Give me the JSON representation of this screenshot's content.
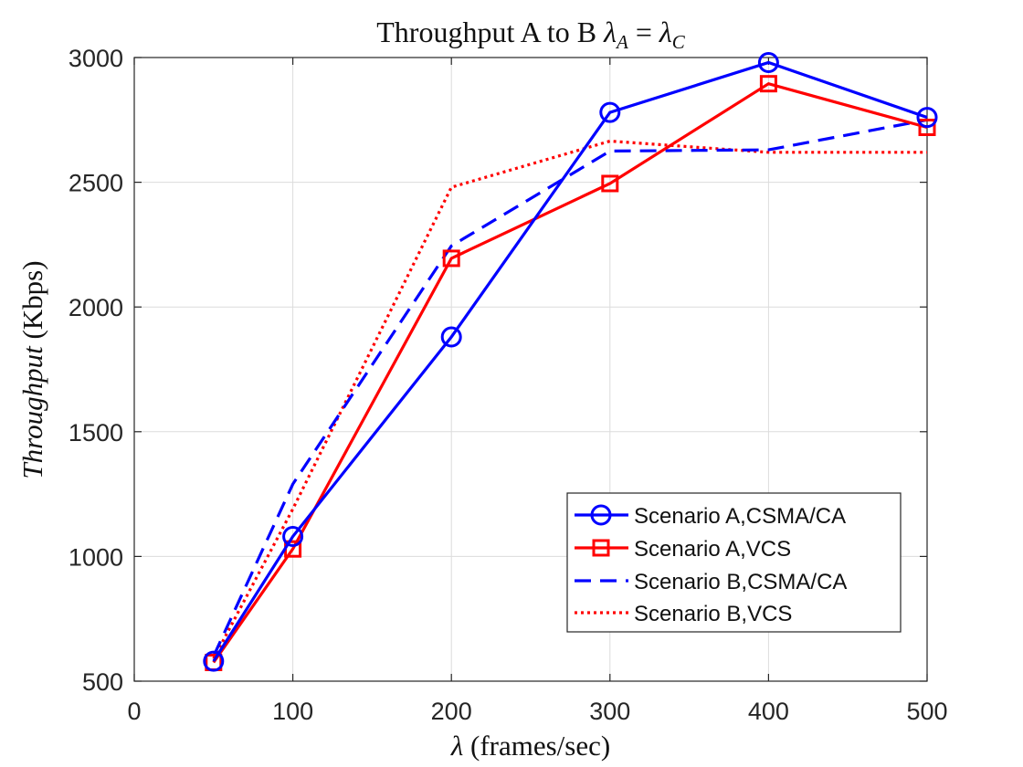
{
  "chart_data": {
    "type": "line",
    "title": {
      "main": "Throughput A to B ",
      "lambda": "λ",
      "sub_a": "A",
      "eq": " = ",
      "lambda2": "λ",
      "sub_c": "C"
    },
    "xlabel": {
      "symbol": "λ",
      "text": " (frames/sec)"
    },
    "ylabel": {
      "italic": "Throughput",
      "text": " (Kbps)"
    },
    "xlim": [
      0,
      500
    ],
    "ylim": [
      500,
      3000
    ],
    "xticks": [
      "0",
      "100",
      "200",
      "300",
      "400",
      "500"
    ],
    "yticks": [
      "500",
      "1000",
      "1500",
      "2000",
      "2500",
      "3000"
    ],
    "grid": true,
    "legend_position": "bottom-right",
    "series": [
      {
        "name": "Scenario A,CSMA/CA",
        "color": "#0000ff",
        "style": "solid",
        "marker": "circle",
        "x": [
          50,
          100,
          200,
          300,
          400,
          500
        ],
        "y": [
          580,
          1080,
          1880,
          2780,
          2980,
          2760
        ]
      },
      {
        "name": "Scenario A,VCS",
        "color": "#ff0000",
        "style": "solid",
        "marker": "square",
        "x": [
          50,
          100,
          200,
          300,
          400,
          500
        ],
        "y": [
          575,
          1030,
          2195,
          2495,
          2895,
          2720
        ]
      },
      {
        "name": "Scenario B,CSMA/CA",
        "color": "#0000ff",
        "style": "dashed",
        "marker": "none",
        "x": [
          50,
          100,
          200,
          300,
          400,
          500
        ],
        "y": [
          600,
          1290,
          2245,
          2625,
          2630,
          2750
        ]
      },
      {
        "name": "Scenario B,VCS",
        "color": "#ff0000",
        "style": "dotted",
        "marker": "none",
        "x": [
          50,
          100,
          200,
          300,
          400,
          500
        ],
        "y": [
          590,
          1190,
          2480,
          2665,
          2620,
          2620
        ]
      }
    ]
  }
}
